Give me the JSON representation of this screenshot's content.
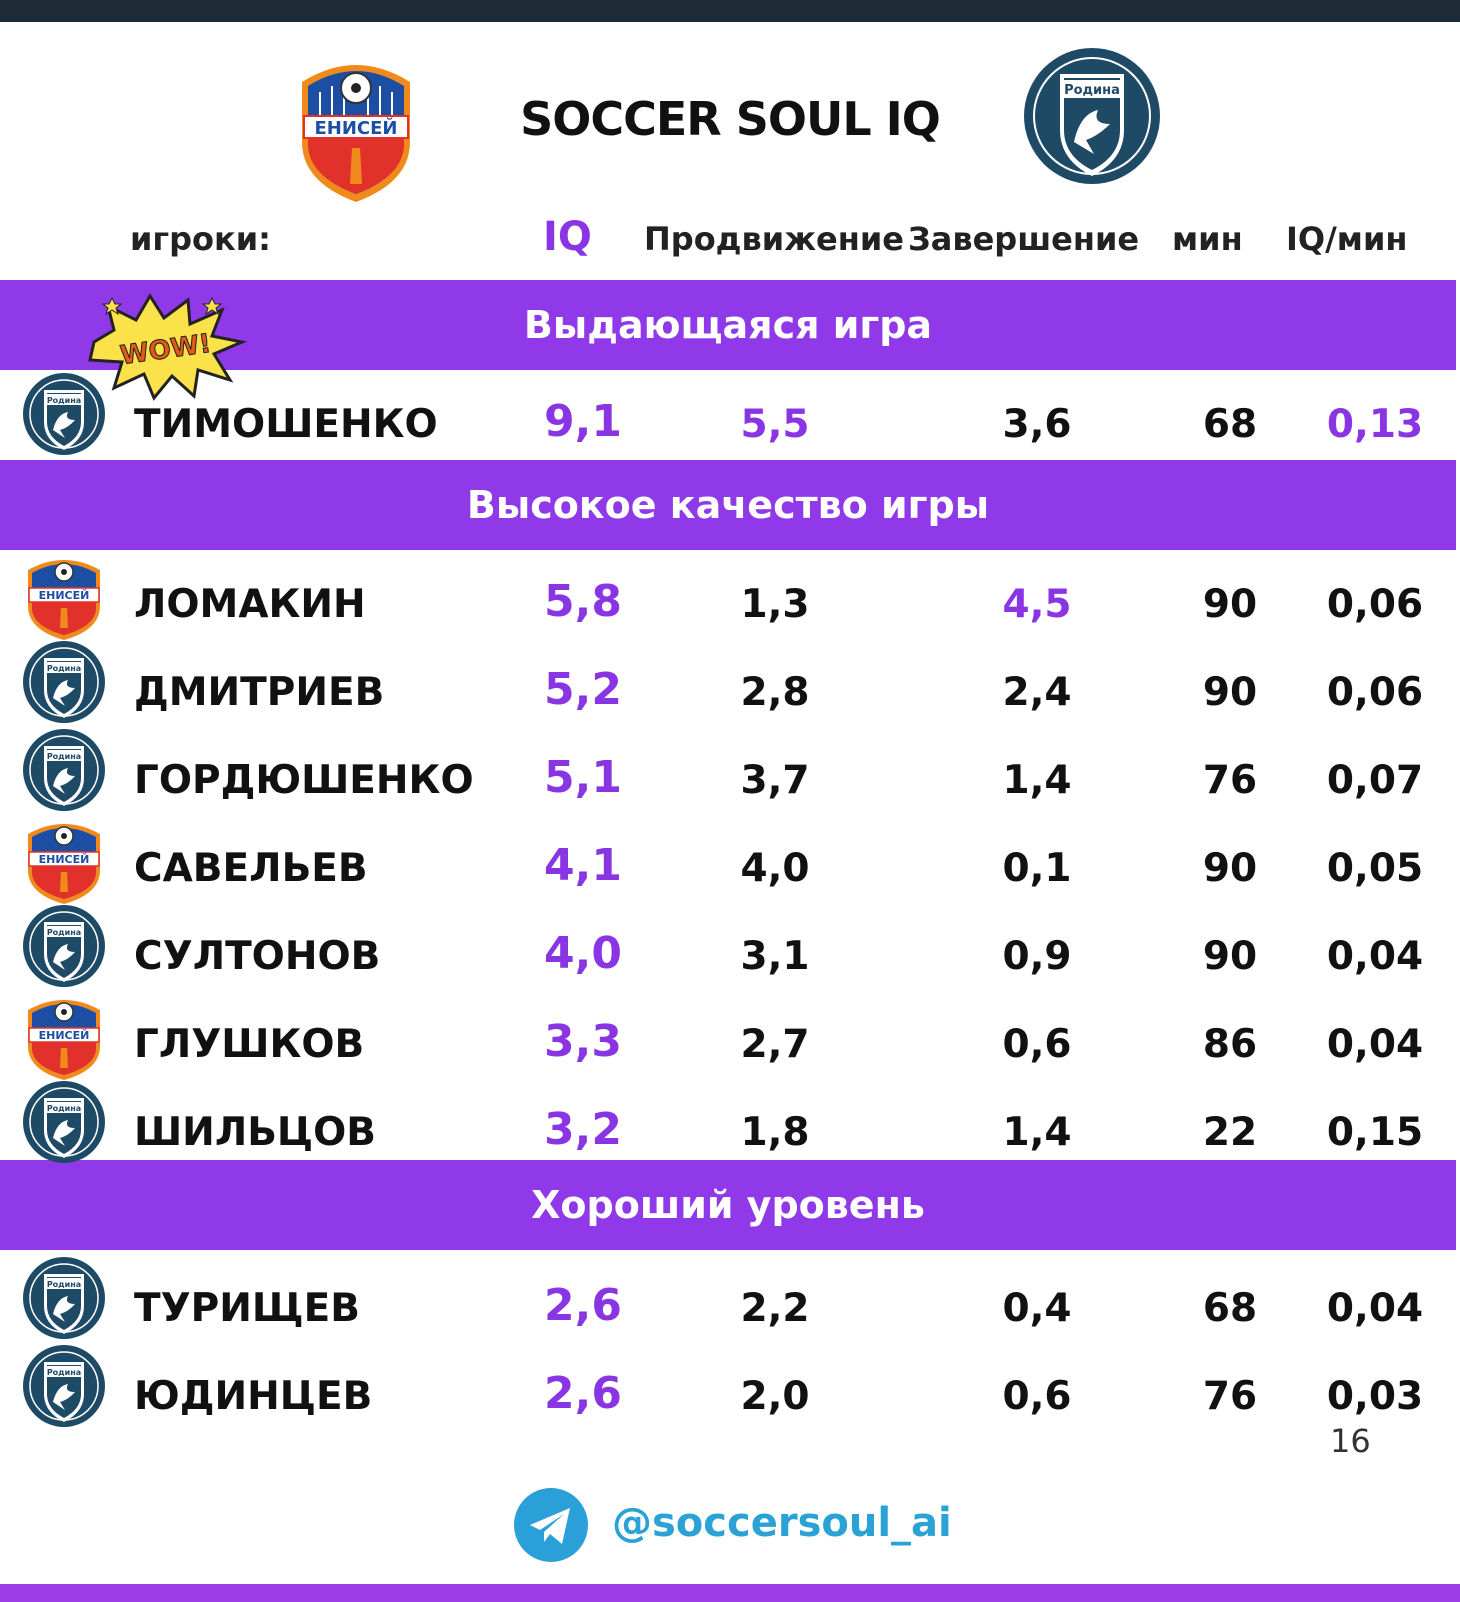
{
  "header": {
    "title": "SOCCER SOUL IQ",
    "left_logo_text": "ЕНИСЕЙ",
    "right_logo_text": "Родина"
  },
  "columns": {
    "players": "игроки:",
    "iq": "IQ",
    "advance": "Продвижение",
    "finish": "Завершение",
    "min": "мин",
    "iq_per_min": "IQ/мин"
  },
  "sections": [
    {
      "label": "Выдающаяся  игра",
      "badge": "WOW!",
      "rows": [
        {
          "team": "Родина",
          "name": "ТИМОШЕНКО",
          "iq": "9,1",
          "advance": "5,5",
          "finish": "3,6",
          "min": "68",
          "iq_min": "0,13"
        }
      ]
    },
    {
      "label": "Высокое качество игры",
      "rows": [
        {
          "team": "ЕНИСЕЙ",
          "name": "ЛОМАКИН",
          "iq": "5,8",
          "advance": "1,3",
          "finish": "4,5",
          "min": "90",
          "iq_min": "0,06"
        },
        {
          "team": "Родина",
          "name": "ДМИТРИЕВ",
          "iq": "5,2",
          "advance": "2,8",
          "finish": "2,4",
          "min": "90",
          "iq_min": "0,06"
        },
        {
          "team": "Родина",
          "name": "ГОРДЮШЕНКО",
          "iq": "5,1",
          "advance": "3,7",
          "finish": "1,4",
          "min": "76",
          "iq_min": "0,07"
        },
        {
          "team": "ЕНИСЕЙ",
          "name": "САВЕЛЬЕВ",
          "iq": "4,1",
          "advance": "4,0",
          "finish": "0,1",
          "min": "90",
          "iq_min": "0,05"
        },
        {
          "team": "Родина",
          "name": "СУЛТОНОВ",
          "iq": "4,0",
          "advance": "3,1",
          "finish": "0,9",
          "min": "90",
          "iq_min": "0,04"
        },
        {
          "team": "ЕНИСЕЙ",
          "name": "ГЛУШКОВ",
          "iq": "3,3",
          "advance": "2,7",
          "finish": "0,6",
          "min": "86",
          "iq_min": "0,04"
        },
        {
          "team": "Родина",
          "name": "ШИЛЬЦОВ",
          "iq": "3,2",
          "advance": "1,8",
          "finish": "1,4",
          "min": "22",
          "iq_min": "0,15"
        }
      ]
    },
    {
      "label": "Хороший уровень",
      "rows": [
        {
          "team": "Родина",
          "name": "ТУРИЩЕВ",
          "iq": "2,6",
          "advance": "2,2",
          "finish": "0,4",
          "min": "68",
          "iq_min": "0,04"
        },
        {
          "team": "Родина",
          "name": "ЮДИНЦЕВ",
          "iq": "2,6",
          "advance": "2,0",
          "finish": "0,6",
          "min": "76",
          "iq_min": "0,03"
        }
      ]
    }
  ],
  "footer": {
    "page_number": "16",
    "handle": "@soccersoul_ai"
  },
  "colors": {
    "accent_purple": "#8f39e8",
    "text_purple": "#8a35e4",
    "telegram_blue": "#2a9fd8",
    "rodina_navy": "#1f4a66",
    "enisey_red": "#e2312b",
    "enisey_blue": "#1c4fa3"
  }
}
